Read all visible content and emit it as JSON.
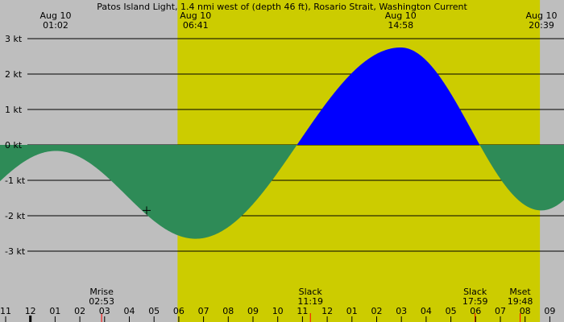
{
  "chart_data": {
    "type": "area",
    "title": "Patos Island Light, 1.4 nmi west of (depth 46 ft), Rosario Strait, Washington Current",
    "xlabel": "",
    "ylabel": "",
    "unit": "kt",
    "x_unit": "hours (Aug 10, local time)",
    "xlim": [
      23.0,
      33.65
    ],
    "ylim": [
      -4.25,
      3.0
    ],
    "y_ticks": [
      {
        "value": 3,
        "label": "3 kt"
      },
      {
        "value": 2,
        "label": "2 kt"
      },
      {
        "value": 1,
        "label": "1 kt"
      },
      {
        "value": 0,
        "label": "0 kt"
      },
      {
        "value": -1,
        "label": "-1 kt"
      },
      {
        "value": -2,
        "label": "-2 kt"
      },
      {
        "value": -3,
        "label": "-3 kt"
      }
    ],
    "x_ticks": [
      {
        "value": 23,
        "label": "11"
      },
      {
        "value": 24,
        "label": "12"
      },
      {
        "value": 25,
        "label": "01"
      },
      {
        "value": 26,
        "label": "02"
      },
      {
        "value": 27,
        "label": "03"
      },
      {
        "value": 28,
        "label": "04"
      },
      {
        "value": 29,
        "label": "05"
      },
      {
        "value": 30,
        "label": "06"
      },
      {
        "value": 31,
        "label": "07"
      },
      {
        "value": 32,
        "label": "08"
      },
      {
        "value": 33,
        "label": "09"
      },
      {
        "value": 34,
        "label": "10"
      },
      {
        "value": 35,
        "label": "11"
      },
      {
        "value": 36,
        "label": "12"
      },
      {
        "value": 37,
        "label": "01"
      },
      {
        "value": 38,
        "label": "02"
      },
      {
        "value": 39,
        "label": "03"
      },
      {
        "value": 40,
        "label": "04"
      },
      {
        "value": 41,
        "label": "05"
      },
      {
        "value": 42,
        "label": "06"
      },
      {
        "value": 43,
        "label": "07"
      },
      {
        "value": 44,
        "label": "08"
      },
      {
        "value": 45,
        "label": "09"
      }
    ],
    "extrema": [
      {
        "date": "Aug 10",
        "time": "01:02",
        "hour": 25.03,
        "value": -0.17
      },
      {
        "date": "Aug 10",
        "time": "06:41",
        "hour": 30.68,
        "value": -2.65
      },
      {
        "date": "Aug 10",
        "time": "14:58",
        "hour": 38.97,
        "value": 2.75
      },
      {
        "date": "Aug 10",
        "time": "20:39",
        "hour": 44.65,
        "value": -1.85
      }
    ],
    "slack_events": [
      {
        "label": "Slack",
        "time": "11:19",
        "hour": 35.32
      },
      {
        "label": "Slack",
        "time": "17:59",
        "hour": 41.98
      }
    ],
    "moon_events": [
      {
        "label": "Mrise",
        "time": "02:53",
        "hour": 26.88
      },
      {
        "label": "Mset",
        "time": "19:48",
        "hour": 43.8
      }
    ],
    "daylight": {
      "start_hour": 29.95,
      "end_hour": 44.6
    },
    "marker": {
      "hour": 28.7,
      "value": -1.85
    },
    "colors": {
      "background": "#bebebe",
      "daylight": "#cccc00",
      "ebb": "#2e8b57",
      "flood": "#0000ff",
      "grid": "#000000",
      "event_tick": "#ff0000"
    }
  }
}
